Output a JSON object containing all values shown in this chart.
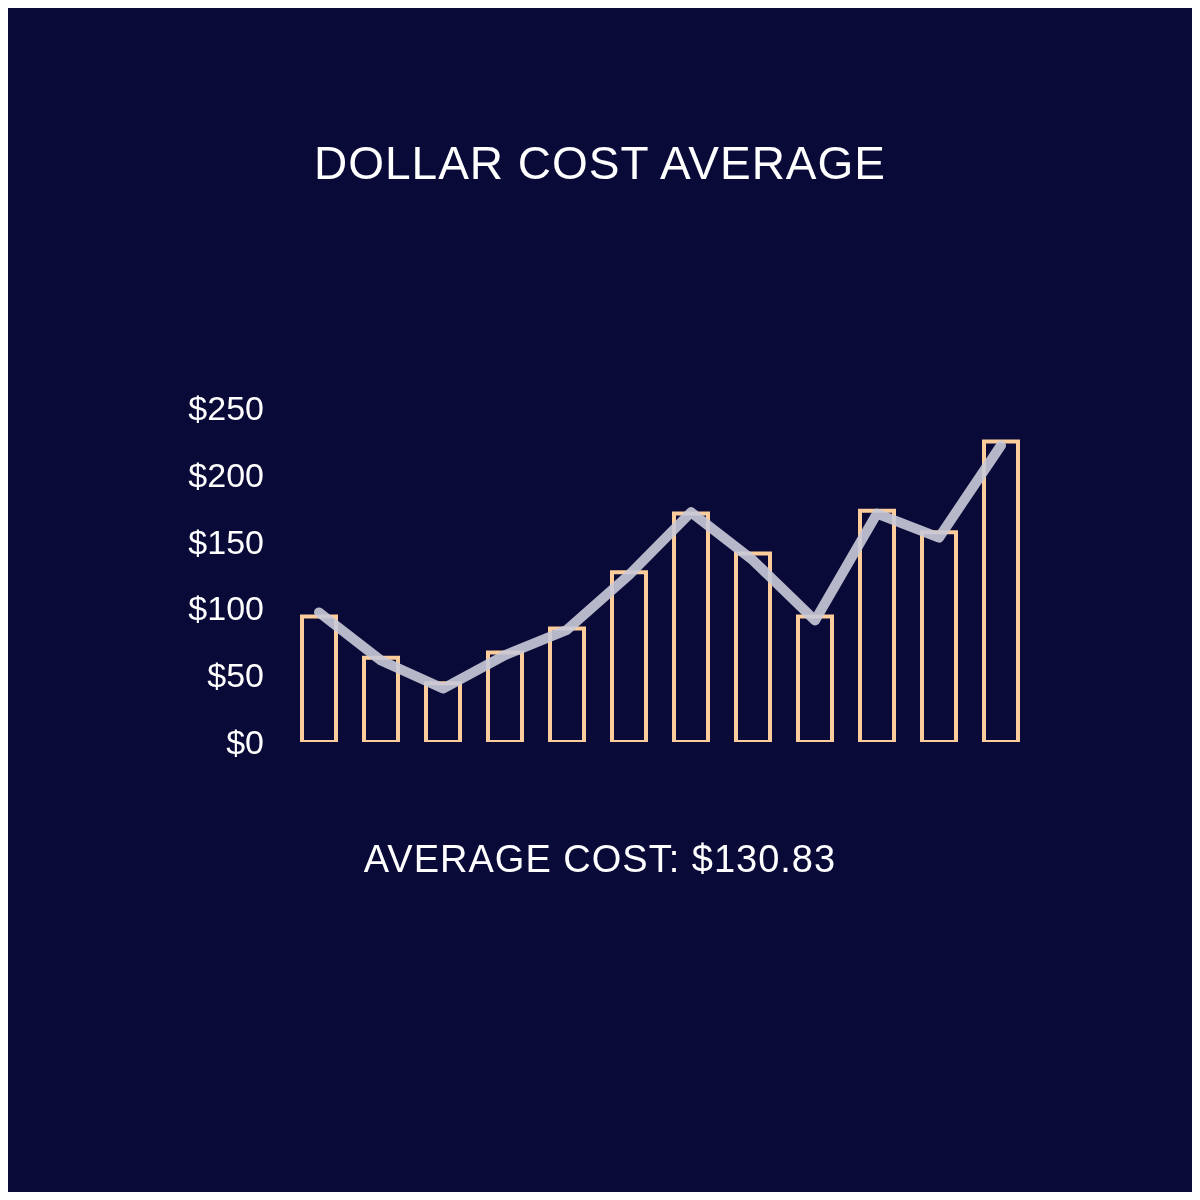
{
  "chart_data": {
    "type": "bar",
    "title": "DOLLAR COST AVERAGE",
    "categories": [
      null,
      null,
      null,
      null,
      null,
      null,
      null,
      null,
      null,
      null,
      null,
      null
    ],
    "series": [
      {
        "color": "#fccc9a",
        "values": [
          94,
          63,
          44,
          67,
          85,
          127,
          171,
          141,
          94,
          173,
          157,
          225
        ]
      },
      {
        "type": "line",
        "color": "#c9cad9",
        "values": [
          97,
          61,
          40,
          65,
          84,
          125,
          172,
          136,
          91,
          171,
          153,
          222
        ]
      }
    ],
    "ylim": [
      0,
      250
    ],
    "yticks": [
      {
        "value": 0,
        "label": "$0"
      },
      {
        "value": 50,
        "label": "$50"
      },
      {
        "value": 100,
        "label": "$100"
      },
      {
        "value": 150,
        "label": "$150"
      },
      {
        "value": 200,
        "label": "$200"
      },
      {
        "value": 250,
        "label": "$250"
      }
    ],
    "marker": "none",
    "annotations": [
      "AVERAGE COST: $130.83"
    ]
  }
}
